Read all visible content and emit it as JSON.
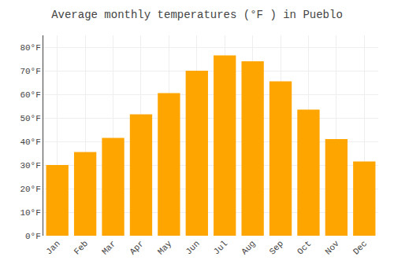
{
  "chart_data": {
    "type": "bar",
    "title": "Average monthly temperatures (°F ) in Pueblo",
    "categories": [
      "Jan",
      "Feb",
      "Mar",
      "Apr",
      "May",
      "Jun",
      "Jul",
      "Aug",
      "Sep",
      "Oct",
      "Nov",
      "Dec"
    ],
    "values": [
      30,
      35.5,
      41.5,
      51.5,
      60.5,
      70,
      76.5,
      74,
      65.5,
      53.5,
      41,
      31.5
    ],
    "color": "#FFA500",
    "ylim": [
      0,
      85
    ],
    "yticks": [
      {
        "value": 0,
        "label": "0°F"
      },
      {
        "value": 10,
        "label": "10°F"
      },
      {
        "value": 20,
        "label": "20°F"
      },
      {
        "value": 30,
        "label": "30°F"
      },
      {
        "value": 40,
        "label": "40°F"
      },
      {
        "value": 50,
        "label": "50°F"
      },
      {
        "value": 60,
        "label": "60°F"
      },
      {
        "value": 70,
        "label": "70°F"
      },
      {
        "value": 80,
        "label": "80°F"
      }
    ],
    "grid": true
  }
}
